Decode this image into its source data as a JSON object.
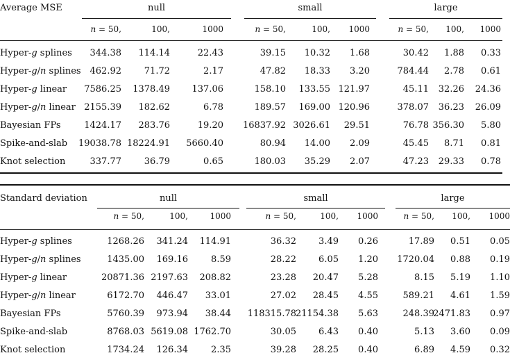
{
  "tables": [
    {
      "title": "Average MSE",
      "groups": [
        "null",
        "small",
        "large"
      ],
      "subheaders": [
        [
          "n = 50,",
          "100,",
          "1000"
        ],
        [
          "n = 50,",
          "100,",
          "1000"
        ],
        [
          "n = 50,",
          "100,",
          "1000"
        ]
      ],
      "rows": [
        {
          "label": "Hyper-g splines",
          "values": [
            "344.38",
            "114.14",
            "22.43",
            "39.15",
            "10.32",
            "1.68",
            "30.42",
            "1.88",
            "0.33"
          ]
        },
        {
          "label": "Hyper-g/n splines",
          "values": [
            "462.92",
            "71.72",
            "2.17",
            "47.82",
            "18.33",
            "3.20",
            "784.44",
            "2.78",
            "0.61"
          ]
        },
        {
          "label": "Hyper-g linear",
          "values": [
            "7586.25",
            "1378.49",
            "137.06",
            "158.10",
            "133.55",
            "121.97",
            "45.11",
            "32.26",
            "24.36"
          ]
        },
        {
          "label": "Hyper-g/n linear",
          "values": [
            "2155.39",
            "182.62",
            "6.78",
            "189.57",
            "169.00",
            "120.96",
            "378.07",
            "36.23",
            "26.09"
          ]
        },
        {
          "label": "Bayesian FPs",
          "values": [
            "1424.17",
            "283.76",
            "19.20",
            "16837.92",
            "3026.61",
            "29.51",
            "76.78",
            "356.30",
            "5.80"
          ]
        },
        {
          "label": "Spike-and-slab",
          "values": [
            "19038.78",
            "18224.91",
            "5660.40",
            "80.94",
            "14.00",
            "2.09",
            "45.45",
            "8.71",
            "0.81"
          ]
        },
        {
          "label": "Knot selection",
          "values": [
            "337.77",
            "36.79",
            "0.65",
            "180.03",
            "35.29",
            "2.07",
            "47.23",
            "29.33",
            "0.78"
          ]
        }
      ]
    },
    {
      "title": "Standard deviation",
      "groups": [
        "null",
        "small",
        "large"
      ],
      "subheaders": [
        [
          "n = 50,",
          "100,",
          "1000"
        ],
        [
          "n = 50,",
          "100,",
          "1000"
        ],
        [
          "n = 50,",
          "100,",
          "1000"
        ]
      ],
      "rows": [
        {
          "label": "Hyper-g splines",
          "values": [
            "1268.26",
            "341.24",
            "114.91",
            "36.32",
            "3.49",
            "0.26",
            "17.89",
            "0.51",
            "0.05"
          ]
        },
        {
          "label": "Hyper-g/n splines",
          "values": [
            "1435.00",
            "169.16",
            "8.59",
            "28.22",
            "6.05",
            "1.20",
            "1720.04",
            "0.88",
            "0.19"
          ]
        },
        {
          "label": "Hyper-g linear",
          "values": [
            "20871.36",
            "2197.63",
            "208.82",
            "23.28",
            "20.47",
            "5.28",
            "8.15",
            "5.19",
            "1.10"
          ]
        },
        {
          "label": "Hyper-g/n linear",
          "values": [
            "6172.70",
            "446.47",
            "33.01",
            "27.02",
            "28.45",
            "4.55",
            "589.21",
            "4.61",
            "1.59"
          ]
        },
        {
          "label": "Bayesian FPs",
          "values": [
            "5760.39",
            "973.94",
            "38.44",
            "118315.78",
            "21154.38",
            "5.63",
            "248.39",
            "2471.83",
            "0.97"
          ]
        },
        {
          "label": "Spike-and-slab",
          "values": [
            "8768.03",
            "5619.08",
            "1762.70",
            "30.05",
            "6.43",
            "0.40",
            "5.13",
            "3.60",
            "0.09"
          ]
        },
        {
          "label": "Knot selection",
          "values": [
            "1734.24",
            "126.34",
            "2.35",
            "39.28",
            "28.25",
            "0.40",
            "6.89",
            "4.59",
            "0.32"
          ]
        }
      ]
    }
  ]
}
